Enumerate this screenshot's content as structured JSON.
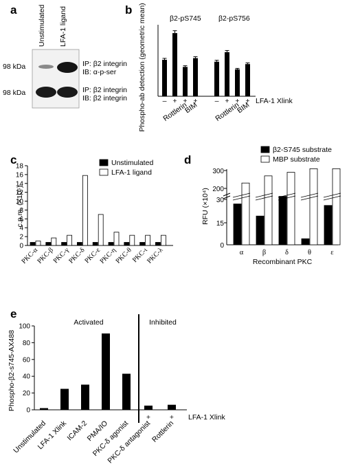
{
  "panels": {
    "a": {
      "label": "a",
      "lanes": [
        "Unstimulated",
        "LFA-1 ligand"
      ],
      "rows": [
        {
          "kda": "98 kDa",
          "ip": "IP: β2 integrin",
          "ib": "IB: α-p-ser"
        },
        {
          "kda": "98 kDa",
          "ip": "IP: β2 integrin",
          "ib": "IB: β2 integrin"
        }
      ]
    },
    "b": {
      "label": "b"
    },
    "c": {
      "label": "c"
    },
    "d": {
      "label": "d"
    },
    "e": {
      "label": "e"
    }
  },
  "chart_data": [
    {
      "panel": "b",
      "type": "bar",
      "ylabel": "Phospho-ab detection (geometric mean)",
      "ylim": [
        0,
        30
      ],
      "groups": [
        {
          "title": "β2-pS745",
          "signs": [
            "–",
            "+",
            "+",
            "+"
          ],
          "values": [
            15.3,
            26.5,
            12.3,
            16.0
          ],
          "errors": [
            0.6,
            1.0,
            0.5,
            0.6
          ]
        },
        {
          "title": "β2-pS756",
          "signs": [
            "–",
            "+",
            "+",
            "+"
          ],
          "values": [
            14.5,
            18.5,
            11.3,
            13.5
          ],
          "errors": [
            0.6,
            0.7,
            0.4,
            0.5
          ]
        }
      ],
      "row_label": "LFA-1 Xlink",
      "treatment_labels": [
        "Rottlerin",
        "BIM",
        "Rottlerin",
        "BIM"
      ]
    },
    {
      "panel": "c",
      "type": "bar",
      "ylabel": "c.p.m. (×10⁵)",
      "ylim": [
        0,
        18
      ],
      "yticks": [
        0,
        2,
        4,
        6,
        8,
        10,
        12,
        14,
        16,
        18
      ],
      "categories": [
        "PKC-α",
        "PKC-β",
        "PKC-γ",
        "PKC-δ",
        "PKC-ε",
        "PKC-η",
        "PKC-θ",
        "PKC-ι",
        "PKC-λ"
      ],
      "series": [
        {
          "name": "Unstimulated",
          "color": "#000000",
          "values": [
            0.7,
            0.7,
            0.7,
            0.7,
            0.7,
            0.7,
            0.7,
            0.7,
            0.7
          ]
        },
        {
          "name": "LFA-1 ligand",
          "color": "#ffffff",
          "values": [
            1.0,
            1.7,
            2.3,
            15.8,
            7.0,
            3.0,
            2.3,
            2.3,
            2.3
          ]
        }
      ],
      "legend": "top-right"
    },
    {
      "panel": "d",
      "type": "bar",
      "ylabel": "RFU (×10⁴)",
      "xlabel": "Recombinant PKC",
      "broken_axis": true,
      "lower_yticks": [
        "0",
        "15",
        "30"
      ],
      "upper_yticks": [
        "200",
        "300"
      ],
      "categories": [
        "α",
        "β",
        "δ",
        "θ",
        "ε"
      ],
      "series": [
        {
          "name": "β2-S745 substrate",
          "color": "#000000",
          "values": [
            27,
            19,
            32,
            4,
            26
          ]
        },
        {
          "name": "MBP substrate",
          "color": "#ffffff",
          "values": [
            230,
            270,
            290,
            310,
            310
          ]
        }
      ],
      "legend": "top-right"
    },
    {
      "panel": "e",
      "type": "bar",
      "ylabel": "Phospho-β2-s745-AX488",
      "ylim": [
        0,
        100
      ],
      "yticks": [
        0,
        20,
        40,
        60,
        80,
        100
      ],
      "categories": [
        "Unstimulated",
        "LFA-1 Xlink",
        "ICAM-2",
        "PMA/IO",
        "PKC-δ agonist",
        "PKC-δ antagonist",
        "Rottlerin"
      ],
      "values": [
        2,
        25,
        30,
        91,
        43,
        5,
        6
      ],
      "sections": [
        "Activated",
        "Inhibited"
      ],
      "xlink_signs": [
        "+",
        "+"
      ],
      "row_label": "LFA-1 Xlink"
    }
  ]
}
